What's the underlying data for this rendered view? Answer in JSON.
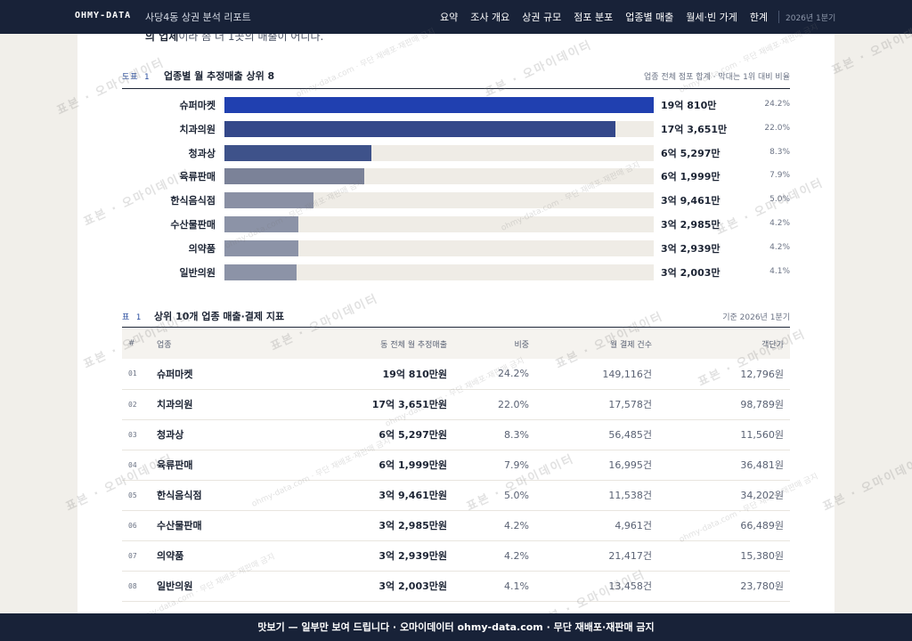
{
  "header": {
    "brand": "OHMY-DATA",
    "report_title": "사당4동 상권 분석 리포트",
    "nav": [
      "요약",
      "조사 개요",
      "상권 규모",
      "점포 분포",
      "업종별 매출",
      "월세·빈 가게",
      "한계"
    ],
    "period": "2026년 1분기"
  },
  "intro_fragment": {
    "bold": "의 업체",
    "rest": "이라 좀 더 1곳의 매출이 어니다."
  },
  "figure": {
    "label": "도표 1",
    "title": "업종별 월 추정매출 상위 8",
    "note": "업종 전체 점포 합계 · 막대는 1위 대비 비율"
  },
  "chart_data": {
    "type": "bar",
    "orientation": "horizontal",
    "title": "업종별 월 추정매출 상위 8",
    "categories": [
      "슈퍼마켓",
      "치과의원",
      "청과상",
      "육류판매",
      "한식음식점",
      "수산물판매",
      "의약품",
      "일반의원"
    ],
    "values": [
      19.081,
      17.3651,
      6.5297,
      6.1999,
      3.9461,
      3.2985,
      3.2939,
      3.2003
    ],
    "value_unit": "억",
    "value_labels": [
      "19억 810만",
      "17억 3,651만",
      "6억 5,297만",
      "6억 1,999만",
      "3억 9,461만",
      "3억 2,985만",
      "3억 2,939만",
      "3억 2,003만"
    ],
    "share_labels": [
      "24.2%",
      "22.0%",
      "8.3%",
      "7.9%",
      "5.0%",
      "4.2%",
      "4.2%",
      "4.1%"
    ],
    "xlim": [
      0,
      19.081
    ],
    "colors": [
      "#2040b0",
      "#34488a",
      "#3e528a",
      "#7b8298",
      "#8a90a4",
      "#8c93a7",
      "#8c93a7",
      "#8c93a7"
    ],
    "track_color": "#efece6"
  },
  "table": {
    "label": "표 1",
    "title": "상위 10개 업종 매출·결제 지표",
    "note": "기준 2026년 1분기",
    "columns": [
      "#",
      "업종",
      "동 전체 월 추정매출",
      "비중",
      "월 결제 건수",
      "객단가"
    ],
    "rows": [
      [
        "01",
        "슈퍼마켓",
        "19억 810만원",
        "24.2%",
        "149,116건",
        "12,796원"
      ],
      [
        "02",
        "치과의원",
        "17억 3,651만원",
        "22.0%",
        "17,578건",
        "98,789원"
      ],
      [
        "03",
        "청과상",
        "6억 5,297만원",
        "8.3%",
        "56,485건",
        "11,560원"
      ],
      [
        "04",
        "육류판매",
        "6억 1,999만원",
        "7.9%",
        "16,995건",
        "36,481원"
      ],
      [
        "05",
        "한식음식점",
        "3억 9,461만원",
        "5.0%",
        "11,538건",
        "34,202원"
      ],
      [
        "06",
        "수산물판매",
        "3억 2,985만원",
        "4.2%",
        "4,961건",
        "66,489원"
      ],
      [
        "07",
        "의약품",
        "3억 2,939만원",
        "4.2%",
        "21,417건",
        "15,380원"
      ],
      [
        "08",
        "일반의원",
        "3억 2,003만원",
        "4.1%",
        "13,458건",
        "23,780원"
      ]
    ]
  },
  "watermark": {
    "main": "표본 · 오마이데이터",
    "domain": "ohmy-data.com · 무단 재배포·재판매 금지"
  },
  "footer": {
    "banner": "맛보기 — 일부만 보여 드립니다 · 오마이데이터 ohmy-data.com · 무단 재배포·재판매 금지"
  }
}
